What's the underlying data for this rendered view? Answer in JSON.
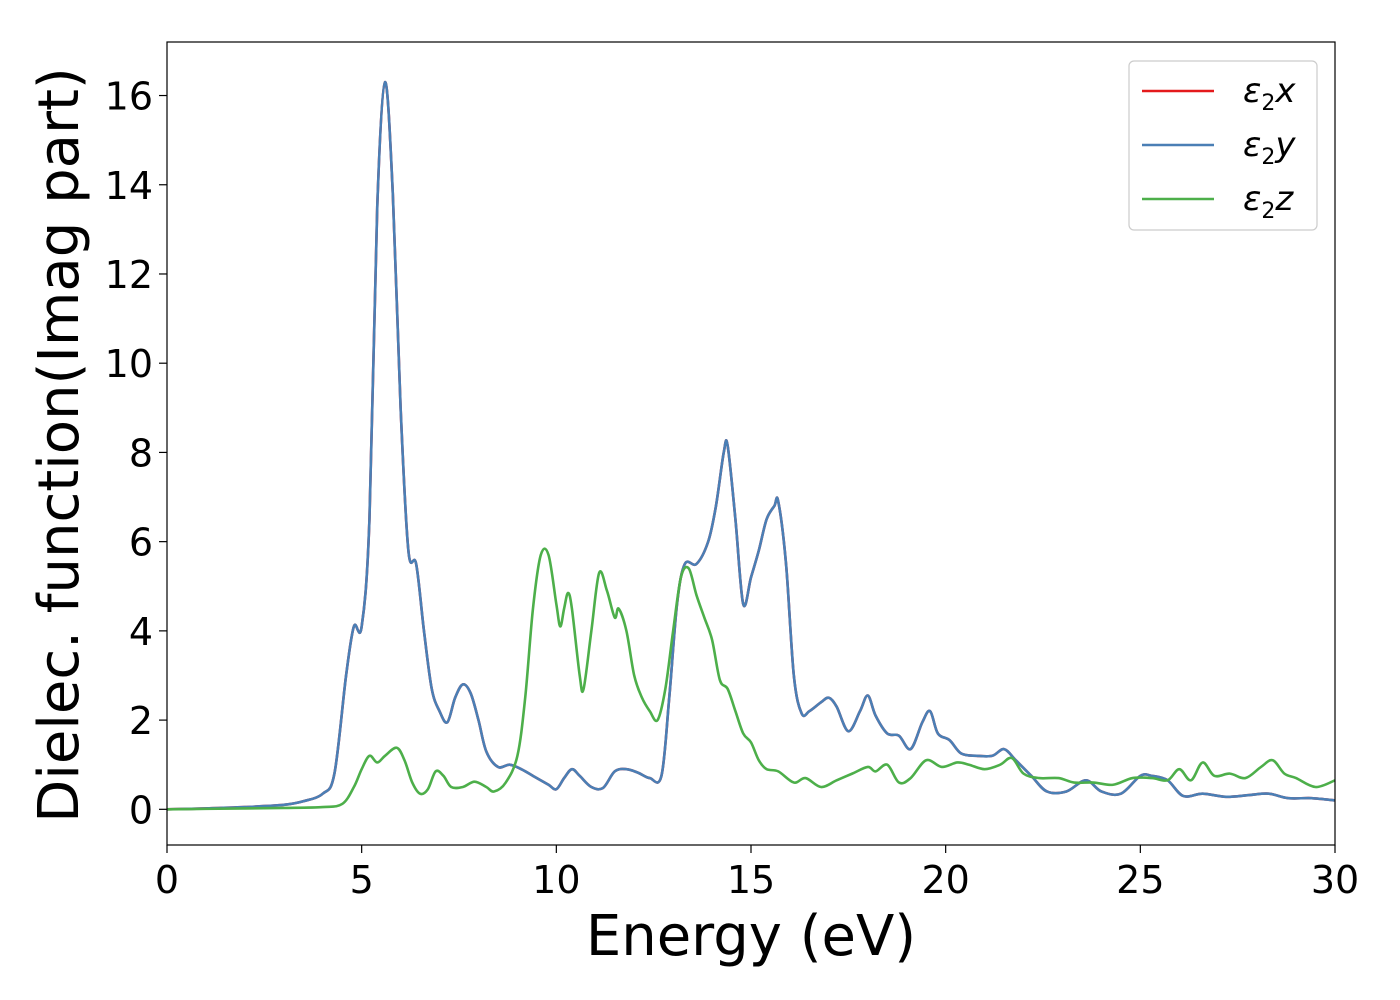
{
  "chart_data": {
    "type": "line",
    "xlabel": "Energy (eV)",
    "ylabel": "Dielec. function(Imag part)",
    "xlim": [
      0,
      30
    ],
    "ylim": [
      -0.8,
      17.2
    ],
    "xticks": [
      0,
      5,
      10,
      15,
      20,
      25,
      30
    ],
    "yticks": [
      0,
      2,
      4,
      6,
      8,
      10,
      12,
      14,
      16
    ],
    "grid": false,
    "legend_position": "top-right",
    "series": [
      {
        "name": "ε2x",
        "legend_base": "ε",
        "legend_sub": "2",
        "legend_var": "x",
        "color": "#e41a1c",
        "points": [
          [
            0,
            0
          ],
          [
            1,
            0.02
          ],
          [
            2,
            0.05
          ],
          [
            3,
            0.1
          ],
          [
            3.5,
            0.18
          ],
          [
            4,
            0.35
          ],
          [
            4.3,
            0.8
          ],
          [
            4.6,
            3.0
          ],
          [
            4.8,
            4.1
          ],
          [
            5.0,
            4.1
          ],
          [
            5.2,
            6.5
          ],
          [
            5.4,
            13.5
          ],
          [
            5.6,
            16.3
          ],
          [
            5.8,
            13.8
          ],
          [
            6.0,
            9.0
          ],
          [
            6.2,
            5.8
          ],
          [
            6.4,
            5.5
          ],
          [
            6.6,
            4.0
          ],
          [
            6.8,
            2.7
          ],
          [
            7.0,
            2.2
          ],
          [
            7.2,
            1.95
          ],
          [
            7.4,
            2.5
          ],
          [
            7.6,
            2.8
          ],
          [
            7.8,
            2.6
          ],
          [
            8.0,
            2.0
          ],
          [
            8.2,
            1.3
          ],
          [
            8.5,
            0.95
          ],
          [
            8.8,
            1.0
          ],
          [
            9.1,
            0.9
          ],
          [
            9.5,
            0.7
          ],
          [
            9.8,
            0.55
          ],
          [
            10.0,
            0.45
          ],
          [
            10.2,
            0.7
          ],
          [
            10.4,
            0.9
          ],
          [
            10.6,
            0.75
          ],
          [
            10.9,
            0.5
          ],
          [
            11.2,
            0.48
          ],
          [
            11.5,
            0.85
          ],
          [
            11.8,
            0.9
          ],
          [
            12.1,
            0.82
          ],
          [
            12.4,
            0.7
          ],
          [
            12.7,
            0.75
          ],
          [
            12.9,
            2.5
          ],
          [
            13.1,
            4.6
          ],
          [
            13.3,
            5.5
          ],
          [
            13.6,
            5.5
          ],
          [
            13.9,
            6.0
          ],
          [
            14.1,
            6.8
          ],
          [
            14.3,
            8.0
          ],
          [
            14.4,
            8.15
          ],
          [
            14.6,
            6.5
          ],
          [
            14.8,
            4.6
          ],
          [
            15.0,
            5.2
          ],
          [
            15.2,
            5.8
          ],
          [
            15.4,
            6.5
          ],
          [
            15.6,
            6.8
          ],
          [
            15.7,
            6.9
          ],
          [
            15.9,
            5.5
          ],
          [
            16.1,
            3.0
          ],
          [
            16.3,
            2.15
          ],
          [
            16.5,
            2.2
          ],
          [
            16.8,
            2.4
          ],
          [
            17.0,
            2.5
          ],
          [
            17.2,
            2.3
          ],
          [
            17.5,
            1.75
          ],
          [
            17.8,
            2.2
          ],
          [
            18.0,
            2.55
          ],
          [
            18.2,
            2.1
          ],
          [
            18.5,
            1.7
          ],
          [
            18.8,
            1.65
          ],
          [
            19.1,
            1.35
          ],
          [
            19.4,
            1.95
          ],
          [
            19.6,
            2.2
          ],
          [
            19.8,
            1.7
          ],
          [
            20.1,
            1.55
          ],
          [
            20.4,
            1.25
          ],
          [
            20.8,
            1.2
          ],
          [
            21.2,
            1.2
          ],
          [
            21.5,
            1.35
          ],
          [
            21.8,
            1.1
          ],
          [
            22.2,
            0.75
          ],
          [
            22.6,
            0.4
          ],
          [
            23.1,
            0.4
          ],
          [
            23.6,
            0.65
          ],
          [
            24.0,
            0.4
          ],
          [
            24.5,
            0.35
          ],
          [
            25.0,
            0.75
          ],
          [
            25.3,
            0.75
          ],
          [
            25.7,
            0.65
          ],
          [
            26.1,
            0.3
          ],
          [
            26.6,
            0.35
          ],
          [
            27.2,
            0.28
          ],
          [
            27.8,
            0.32
          ],
          [
            28.3,
            0.35
          ],
          [
            28.8,
            0.25
          ],
          [
            29.4,
            0.25
          ],
          [
            30,
            0.2
          ]
        ]
      },
      {
        "name": "ε2y",
        "legend_base": "ε",
        "legend_sub": "2",
        "legend_var": "y",
        "color": "#4a7fb5",
        "points": [
          [
            0,
            0
          ],
          [
            1,
            0.02
          ],
          [
            2,
            0.05
          ],
          [
            3,
            0.1
          ],
          [
            3.5,
            0.18
          ],
          [
            4,
            0.35
          ],
          [
            4.3,
            0.8
          ],
          [
            4.6,
            3.0
          ],
          [
            4.8,
            4.1
          ],
          [
            5.0,
            4.1
          ],
          [
            5.2,
            6.5
          ],
          [
            5.4,
            13.5
          ],
          [
            5.6,
            16.3
          ],
          [
            5.8,
            13.8
          ],
          [
            6.0,
            9.0
          ],
          [
            6.2,
            5.8
          ],
          [
            6.4,
            5.5
          ],
          [
            6.6,
            4.0
          ],
          [
            6.8,
            2.7
          ],
          [
            7.0,
            2.2
          ],
          [
            7.2,
            1.95
          ],
          [
            7.4,
            2.5
          ],
          [
            7.6,
            2.8
          ],
          [
            7.8,
            2.6
          ],
          [
            8.0,
            2.0
          ],
          [
            8.2,
            1.3
          ],
          [
            8.5,
            0.95
          ],
          [
            8.8,
            1.0
          ],
          [
            9.1,
            0.9
          ],
          [
            9.5,
            0.7
          ],
          [
            9.8,
            0.55
          ],
          [
            10.0,
            0.45
          ],
          [
            10.2,
            0.7
          ],
          [
            10.4,
            0.9
          ],
          [
            10.6,
            0.75
          ],
          [
            10.9,
            0.5
          ],
          [
            11.2,
            0.48
          ],
          [
            11.5,
            0.85
          ],
          [
            11.8,
            0.9
          ],
          [
            12.1,
            0.82
          ],
          [
            12.4,
            0.7
          ],
          [
            12.7,
            0.75
          ],
          [
            12.9,
            2.5
          ],
          [
            13.1,
            4.6
          ],
          [
            13.3,
            5.5
          ],
          [
            13.6,
            5.5
          ],
          [
            13.9,
            6.0
          ],
          [
            14.1,
            6.8
          ],
          [
            14.3,
            8.0
          ],
          [
            14.4,
            8.15
          ],
          [
            14.6,
            6.5
          ],
          [
            14.8,
            4.6
          ],
          [
            15.0,
            5.2
          ],
          [
            15.2,
            5.8
          ],
          [
            15.4,
            6.5
          ],
          [
            15.6,
            6.8
          ],
          [
            15.7,
            6.9
          ],
          [
            15.9,
            5.5
          ],
          [
            16.1,
            3.0
          ],
          [
            16.3,
            2.15
          ],
          [
            16.5,
            2.2
          ],
          [
            16.8,
            2.4
          ],
          [
            17.0,
            2.5
          ],
          [
            17.2,
            2.3
          ],
          [
            17.5,
            1.75
          ],
          [
            17.8,
            2.2
          ],
          [
            18.0,
            2.55
          ],
          [
            18.2,
            2.1
          ],
          [
            18.5,
            1.7
          ],
          [
            18.8,
            1.65
          ],
          [
            19.1,
            1.35
          ],
          [
            19.4,
            1.95
          ],
          [
            19.6,
            2.2
          ],
          [
            19.8,
            1.7
          ],
          [
            20.1,
            1.55
          ],
          [
            20.4,
            1.25
          ],
          [
            20.8,
            1.2
          ],
          [
            21.2,
            1.2
          ],
          [
            21.5,
            1.35
          ],
          [
            21.8,
            1.1
          ],
          [
            22.2,
            0.75
          ],
          [
            22.6,
            0.4
          ],
          [
            23.1,
            0.4
          ],
          [
            23.6,
            0.65
          ],
          [
            24.0,
            0.4
          ],
          [
            24.5,
            0.35
          ],
          [
            25.0,
            0.75
          ],
          [
            25.3,
            0.75
          ],
          [
            25.7,
            0.65
          ],
          [
            26.1,
            0.3
          ],
          [
            26.6,
            0.35
          ],
          [
            27.2,
            0.28
          ],
          [
            27.8,
            0.32
          ],
          [
            28.3,
            0.35
          ],
          [
            28.8,
            0.25
          ],
          [
            29.4,
            0.25
          ],
          [
            30,
            0.2
          ]
        ]
      },
      {
        "name": "ε2z",
        "legend_base": "ε",
        "legend_sub": "2",
        "legend_var": "z",
        "color": "#4daf4a",
        "points": [
          [
            0,
            0
          ],
          [
            1,
            0.01
          ],
          [
            2,
            0.02
          ],
          [
            3,
            0.03
          ],
          [
            4,
            0.05
          ],
          [
            4.5,
            0.12
          ],
          [
            4.8,
            0.5
          ],
          [
            5.0,
            0.9
          ],
          [
            5.2,
            1.2
          ],
          [
            5.4,
            1.05
          ],
          [
            5.6,
            1.2
          ],
          [
            5.9,
            1.38
          ],
          [
            6.1,
            1.1
          ],
          [
            6.3,
            0.6
          ],
          [
            6.5,
            0.35
          ],
          [
            6.7,
            0.45
          ],
          [
            6.9,
            0.85
          ],
          [
            7.1,
            0.75
          ],
          [
            7.3,
            0.5
          ],
          [
            7.6,
            0.5
          ],
          [
            7.9,
            0.62
          ],
          [
            8.2,
            0.5
          ],
          [
            8.4,
            0.4
          ],
          [
            8.7,
            0.6
          ],
          [
            9.0,
            1.2
          ],
          [
            9.2,
            2.5
          ],
          [
            9.4,
            4.5
          ],
          [
            9.6,
            5.7
          ],
          [
            9.8,
            5.7
          ],
          [
            10.0,
            4.6
          ],
          [
            10.1,
            4.1
          ],
          [
            10.2,
            4.5
          ],
          [
            10.3,
            4.85
          ],
          [
            10.4,
            4.5
          ],
          [
            10.6,
            3.0
          ],
          [
            10.7,
            2.7
          ],
          [
            10.9,
            4.0
          ],
          [
            11.1,
            5.3
          ],
          [
            11.3,
            4.9
          ],
          [
            11.5,
            4.3
          ],
          [
            11.6,
            4.5
          ],
          [
            11.8,
            4.0
          ],
          [
            12.0,
            3.0
          ],
          [
            12.2,
            2.5
          ],
          [
            12.4,
            2.2
          ],
          [
            12.6,
            2.0
          ],
          [
            12.8,
            2.7
          ],
          [
            13.0,
            4.0
          ],
          [
            13.2,
            5.2
          ],
          [
            13.4,
            5.4
          ],
          [
            13.6,
            4.8
          ],
          [
            13.8,
            4.3
          ],
          [
            14.0,
            3.8
          ],
          [
            14.2,
            2.9
          ],
          [
            14.4,
            2.7
          ],
          [
            14.6,
            2.2
          ],
          [
            14.8,
            1.7
          ],
          [
            15.0,
            1.5
          ],
          [
            15.2,
            1.1
          ],
          [
            15.4,
            0.9
          ],
          [
            15.7,
            0.85
          ],
          [
            16.1,
            0.6
          ],
          [
            16.4,
            0.7
          ],
          [
            16.8,
            0.5
          ],
          [
            17.2,
            0.65
          ],
          [
            17.6,
            0.8
          ],
          [
            18.0,
            0.95
          ],
          [
            18.2,
            0.85
          ],
          [
            18.5,
            1.0
          ],
          [
            18.8,
            0.6
          ],
          [
            19.1,
            0.7
          ],
          [
            19.5,
            1.1
          ],
          [
            19.9,
            0.95
          ],
          [
            20.3,
            1.05
          ],
          [
            20.6,
            1.0
          ],
          [
            21.0,
            0.9
          ],
          [
            21.4,
            1.0
          ],
          [
            21.7,
            1.15
          ],
          [
            22.0,
            0.8
          ],
          [
            22.4,
            0.7
          ],
          [
            22.9,
            0.7
          ],
          [
            23.3,
            0.6
          ],
          [
            23.8,
            0.6
          ],
          [
            24.3,
            0.55
          ],
          [
            24.8,
            0.7
          ],
          [
            25.3,
            0.7
          ],
          [
            25.7,
            0.65
          ],
          [
            26.0,
            0.9
          ],
          [
            26.3,
            0.65
          ],
          [
            26.6,
            1.05
          ],
          [
            26.9,
            0.75
          ],
          [
            27.3,
            0.8
          ],
          [
            27.7,
            0.7
          ],
          [
            28.1,
            0.95
          ],
          [
            28.4,
            1.1
          ],
          [
            28.7,
            0.8
          ],
          [
            29.0,
            0.7
          ],
          [
            29.5,
            0.5
          ],
          [
            30,
            0.65
          ]
        ]
      }
    ]
  }
}
